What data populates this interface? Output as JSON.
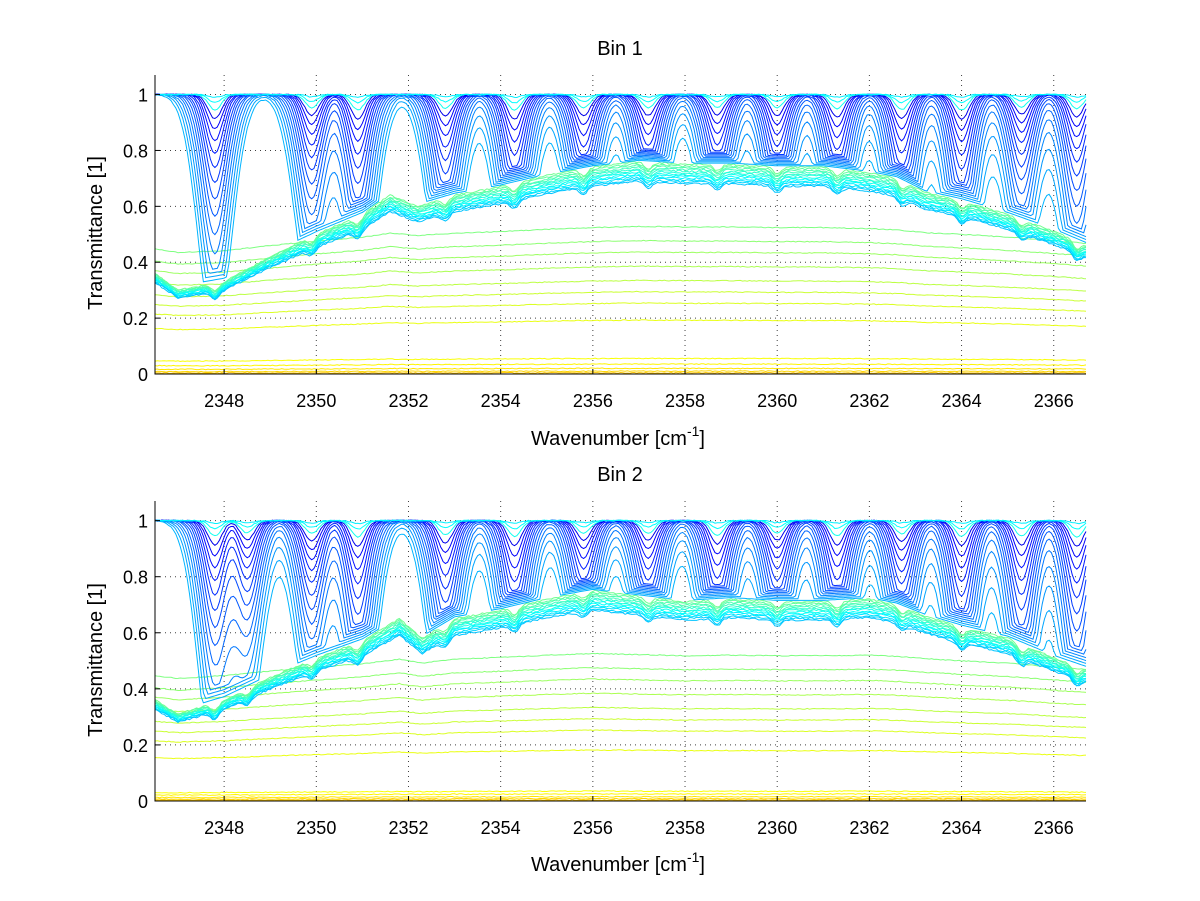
{
  "figure": {
    "background": "#ffffff"
  },
  "chart_data": [
    {
      "type": "line",
      "title": "Bin 1",
      "xlabel": "Wavenumber [cm",
      "xlabel_sup": "-1",
      "xlabel_end": "]",
      "ylabel": "Transmittance [1]",
      "xlim": [
        2346.5,
        2366.7
      ],
      "ylim": [
        0,
        1.07
      ],
      "xticks": [
        2348,
        2350,
        2352,
        2354,
        2356,
        2358,
        2360,
        2362,
        2364,
        2366
      ],
      "yticks": [
        0,
        0.2,
        0.4,
        0.6,
        0.8,
        1
      ],
      "ytick_labels": [
        "0",
        "0.2",
        "0.4",
        "0.6",
        "0.8",
        "1"
      ],
      "grid": true,
      "n_series": 42,
      "colormap": "jet",
      "absorption_lines": [
        2347.8,
        2349.9,
        2350.9,
        2352.8,
        2354.3,
        2355.8,
        2357.2,
        2358.7,
        2360.0,
        2361.3,
        2362.7,
        2364.0,
        2365.3,
        2366.5
      ],
      "continuum_x": [
        2346.5,
        2347.0,
        2348.0,
        2349.0,
        2350.0,
        2351.0,
        2351.6,
        2352.2,
        2353.0,
        2354.0,
        2355.0,
        2356.0,
        2357.0,
        2358.0,
        2359.0,
        2360.0,
        2361.0,
        2362.0,
        2362.6,
        2363.2,
        2364.0,
        2365.0,
        2366.0,
        2366.7
      ],
      "continuum_y": [
        0.36,
        0.3,
        0.33,
        0.42,
        0.5,
        0.57,
        0.64,
        0.6,
        0.64,
        0.67,
        0.71,
        0.74,
        0.76,
        0.75,
        0.75,
        0.74,
        0.74,
        0.72,
        0.7,
        0.65,
        0.62,
        0.57,
        0.51,
        0.46
      ],
      "lower_levels": [
        0.52,
        0.47,
        0.43,
        0.38,
        0.33,
        0.29,
        0.25,
        0.19,
        0.055,
        0.035,
        0.02,
        0.01,
        0.004
      ]
    },
    {
      "type": "line",
      "title": "Bin 2",
      "xlabel": "Wavenumber [cm",
      "xlabel_sup": "-1",
      "xlabel_end": "]",
      "ylabel": "Transmittance [1]",
      "xlim": [
        2346.5,
        2366.7
      ],
      "ylim": [
        0,
        1.07
      ],
      "xticks": [
        2348,
        2350,
        2352,
        2354,
        2356,
        2358,
        2360,
        2362,
        2364,
        2366
      ],
      "yticks": [
        0,
        0.2,
        0.4,
        0.6,
        0.8,
        1
      ],
      "ytick_labels": [
        "0",
        "0.2",
        "0.4",
        "0.6",
        "0.8",
        "1"
      ],
      "grid": true,
      "n_series": 42,
      "colormap": "jet",
      "absorption_lines": [
        2347.8,
        2348.5,
        2349.9,
        2350.9,
        2352.8,
        2354.3,
        2355.8,
        2357.2,
        2358.7,
        2360.0,
        2361.3,
        2362.7,
        2364.0,
        2365.3,
        2366.5
      ],
      "continuum_x": [
        2346.5,
        2347.0,
        2348.0,
        2349.0,
        2350.0,
        2351.0,
        2351.8,
        2352.3,
        2353.0,
        2354.0,
        2355.0,
        2356.0,
        2357.0,
        2358.0,
        2359.0,
        2360.0,
        2361.0,
        2362.0,
        2362.6,
        2363.2,
        2364.0,
        2365.0,
        2366.0,
        2366.7
      ],
      "continuum_y": [
        0.36,
        0.31,
        0.36,
        0.44,
        0.51,
        0.57,
        0.65,
        0.58,
        0.65,
        0.68,
        0.72,
        0.75,
        0.73,
        0.71,
        0.72,
        0.71,
        0.71,
        0.72,
        0.7,
        0.66,
        0.62,
        0.58,
        0.51,
        0.47
      ],
      "lower_levels": [
        0.52,
        0.47,
        0.43,
        0.38,
        0.33,
        0.29,
        0.25,
        0.18,
        0.035,
        0.025,
        0.015,
        0.008,
        0.003
      ]
    }
  ]
}
